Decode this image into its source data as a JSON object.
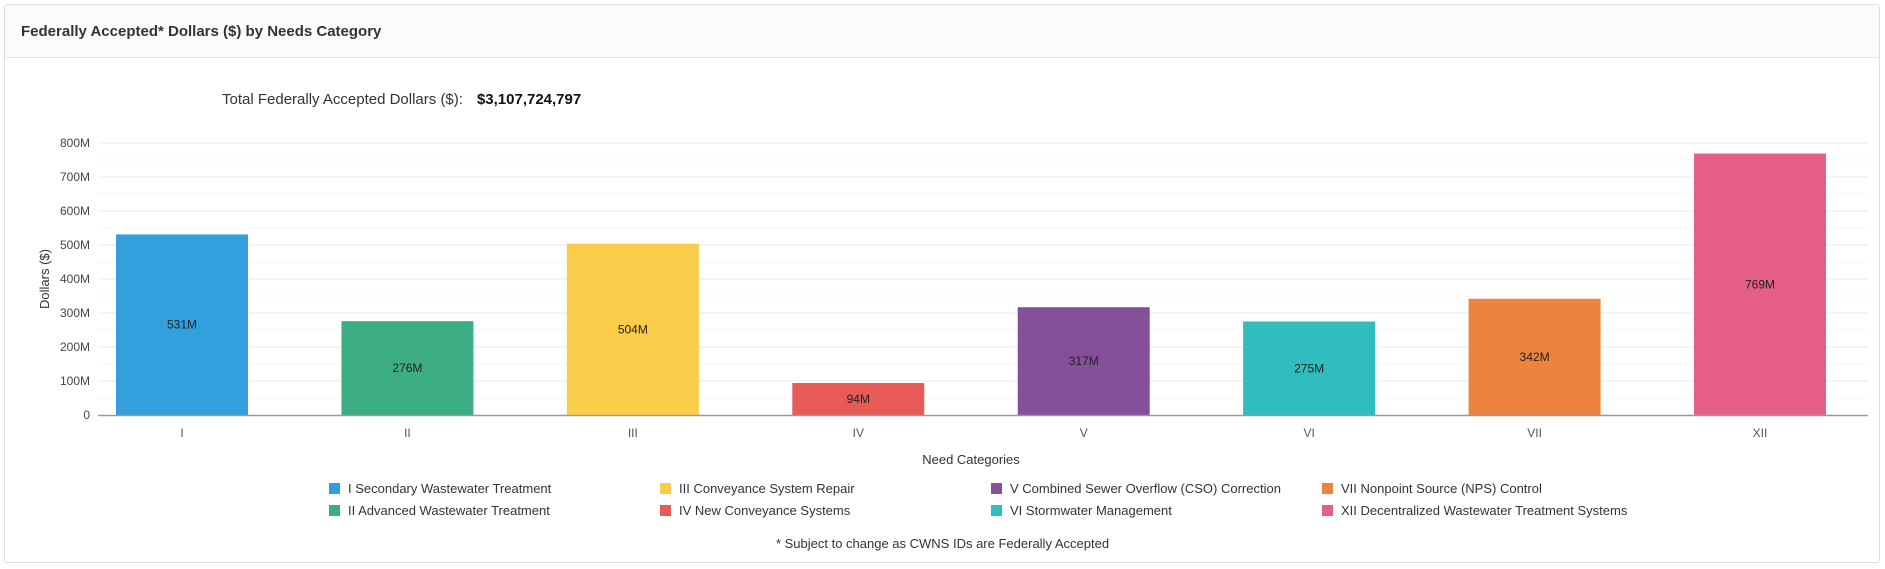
{
  "panel": {
    "title": "Federally Accepted* Dollars ($) by Needs Category"
  },
  "summary": {
    "label": "Total Federally Accepted Dollars ($):",
    "value": "$3,107,724,797"
  },
  "footnote": "* Subject to change as CWNS IDs are Federally Accepted",
  "chart_data": {
    "type": "bar",
    "categories": [
      "I",
      "II",
      "III",
      "IV",
      "V",
      "VI",
      "VII",
      "XII"
    ],
    "values": [
      531,
      276,
      504,
      94,
      317,
      275,
      342,
      769
    ],
    "data_labels": [
      "531M",
      "276M",
      "504M",
      "94M",
      "317M",
      "275M",
      "342M",
      "769M"
    ],
    "colors": [
      "#339fdc",
      "#3dae84",
      "#f9cd49",
      "#e85a55",
      "#854f9a",
      "#2fbebd",
      "#ec833e",
      "#e55e86"
    ],
    "xlabel": "Need Categories",
    "ylabel": "Dollars ($)",
    "ylim": [
      0,
      800
    ],
    "yticks": [
      "0",
      "100M",
      "200M",
      "300M",
      "400M",
      "500M",
      "600M",
      "700M",
      "800M"
    ],
    "grid": true,
    "legend_position": "bottom",
    "legend": [
      {
        "label": "I Secondary Wastewater Treatment",
        "color": "#339fdc"
      },
      {
        "label": "III Conveyance System Repair",
        "color": "#f9cd49"
      },
      {
        "label": "V Combined Sewer Overflow (CSO) Correction",
        "color": "#854f9a"
      },
      {
        "label": "VII Nonpoint Source (NPS) Control",
        "color": "#ec833e"
      },
      {
        "label": "II Advanced Wastewater Treatment",
        "color": "#3dae84"
      },
      {
        "label": "IV New Conveyance Systems",
        "color": "#e85a55"
      },
      {
        "label": "VI Stormwater Management",
        "color": "#2fbebd"
      },
      {
        "label": "XII Decentralized Wastewater Treatment Systems",
        "color": "#e55e86"
      }
    ]
  }
}
